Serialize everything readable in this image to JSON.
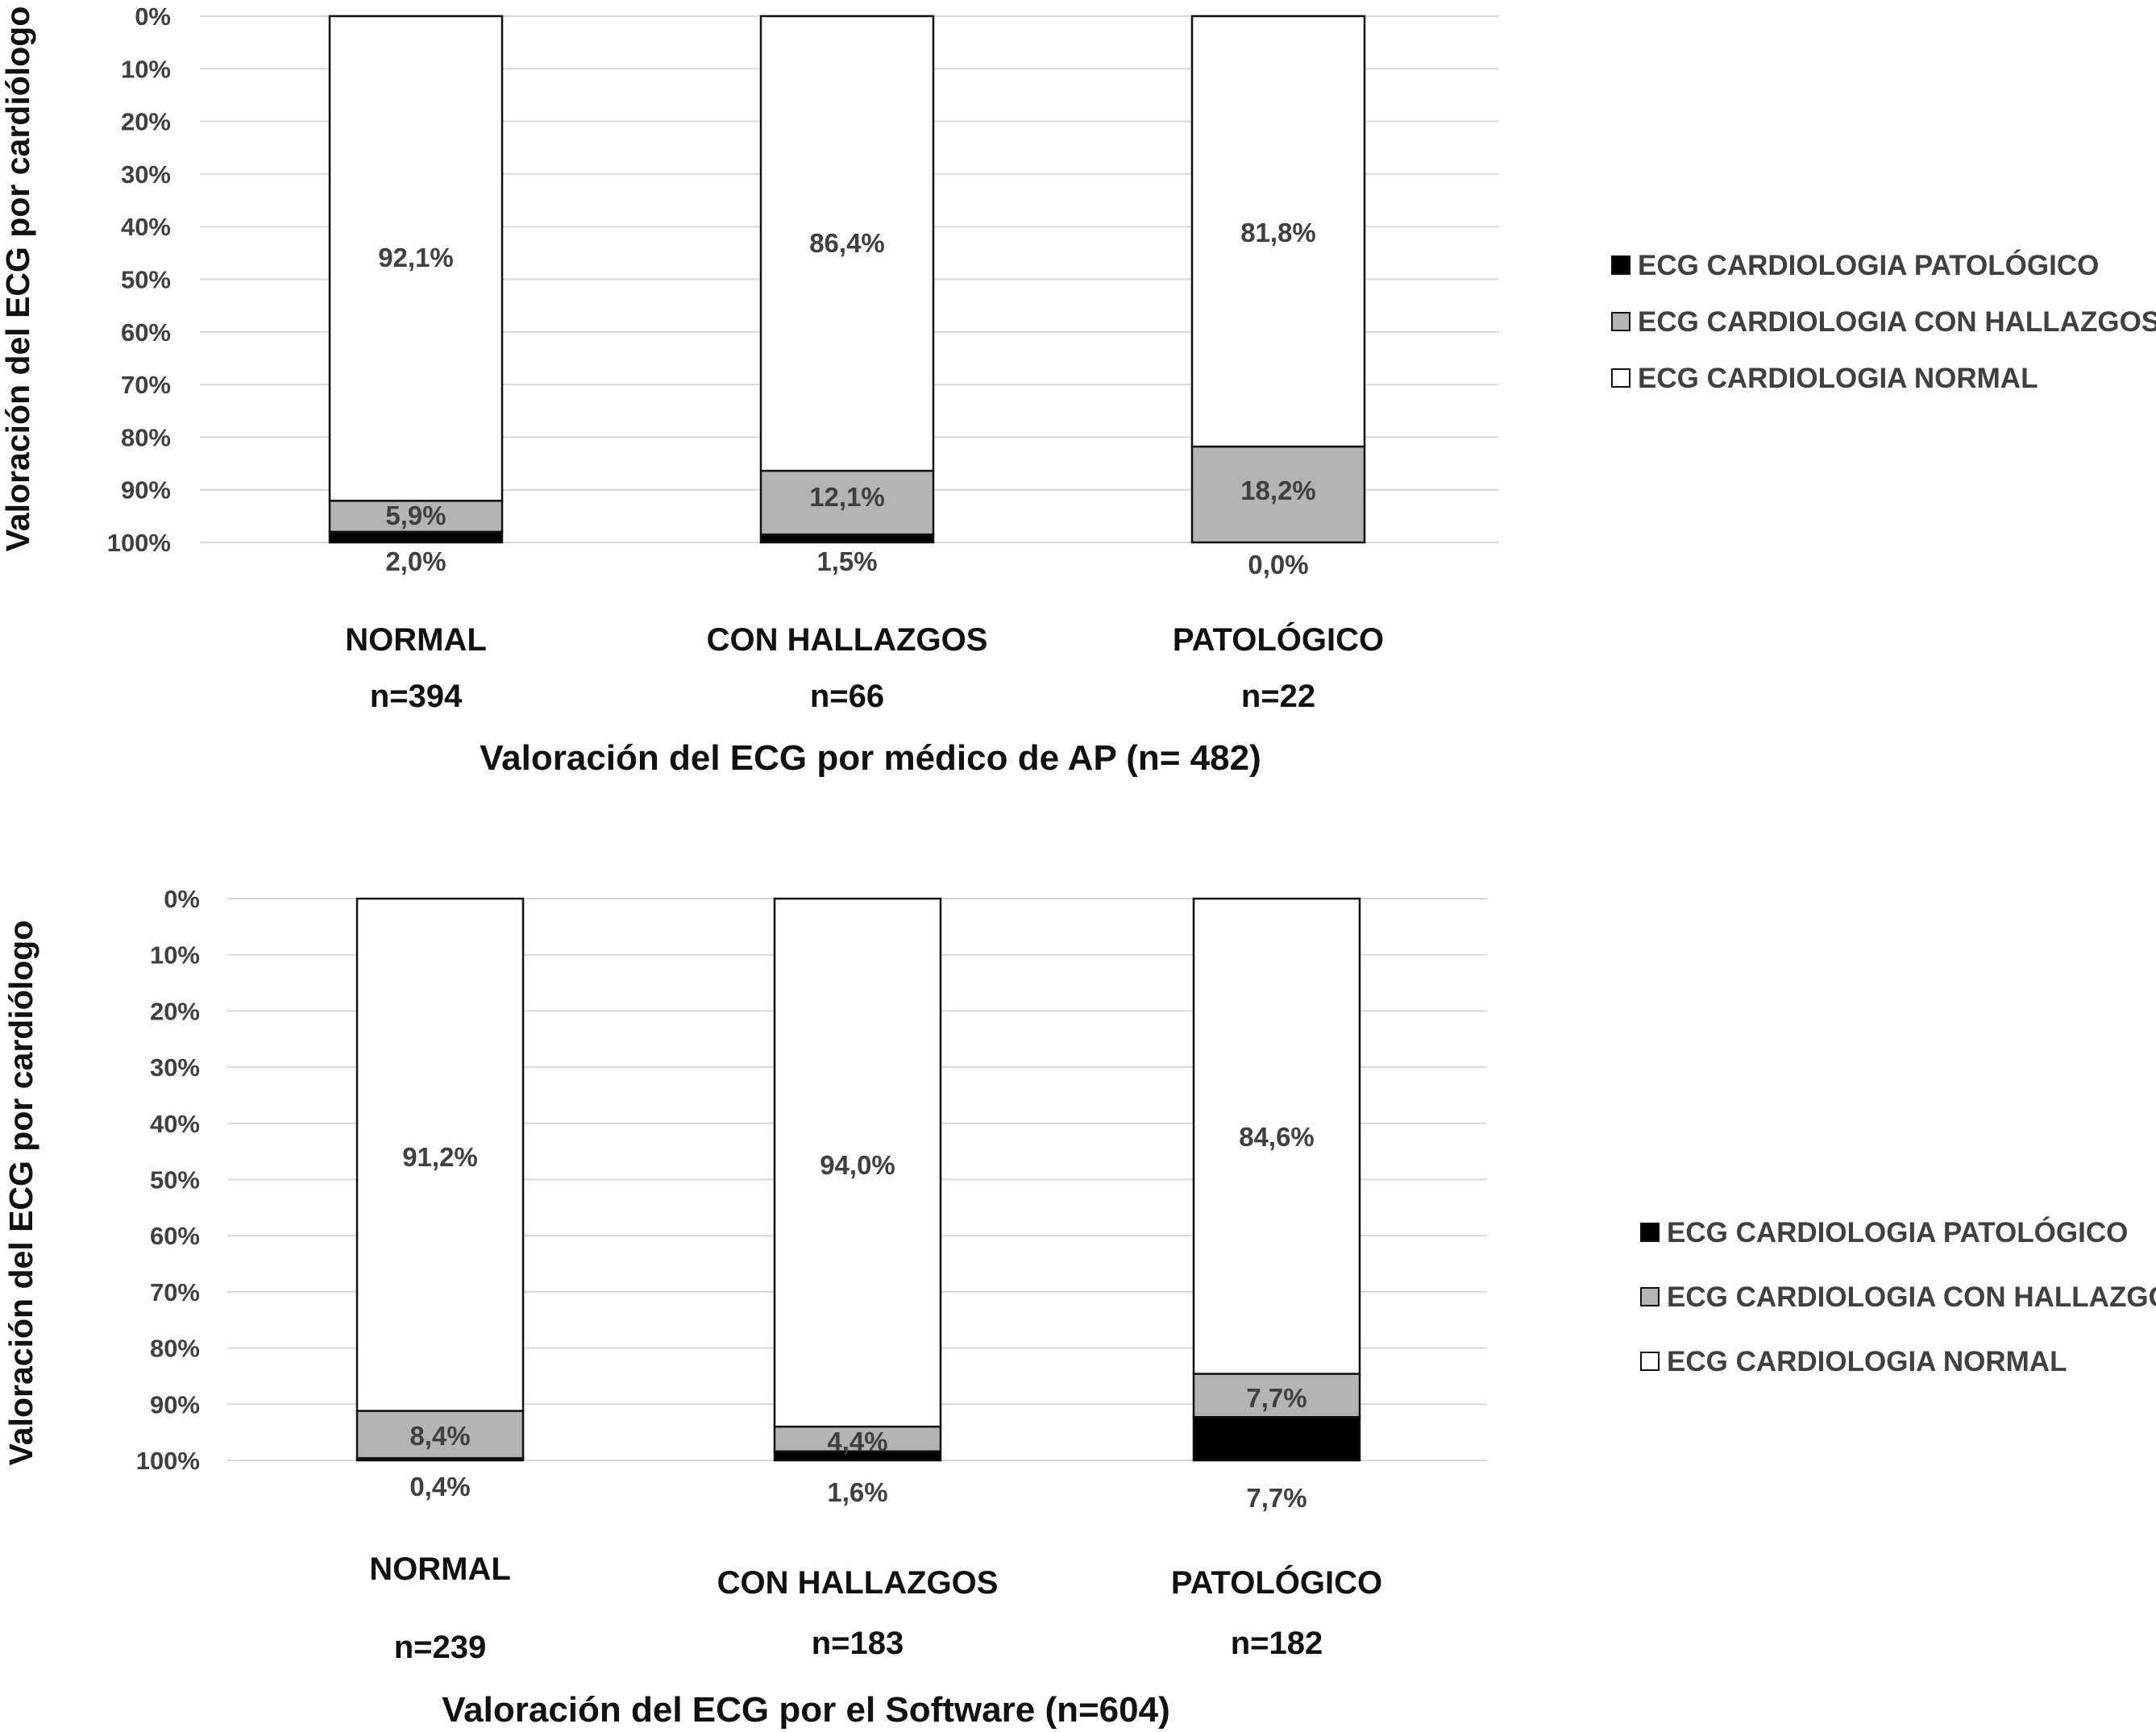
{
  "legend_items": [
    "ECG CARDIOLOGIA PATOLÓGICO",
    "ECG CARDIOLOGIA CON HALLAZGOS",
    "ECG CARDIOLOGIA NORMAL"
  ],
  "series_colors": {
    "patologico": "#000000",
    "hallazgos": "#b4b4b4",
    "normal": "#ffffff"
  },
  "chart_data": [
    {
      "type": "bar",
      "stacked": true,
      "percent_axis_reversed": true,
      "ylabel": "Valoración del ECG por cardiólogo",
      "xlabel": "Valoración del ECG por médico de AP (n= 482)",
      "ylim": [
        0,
        100
      ],
      "yticks": [
        "0%",
        "10%",
        "20%",
        "30%",
        "40%",
        "50%",
        "60%",
        "70%",
        "80%",
        "90%",
        "100%"
      ],
      "categories": [
        "NORMAL",
        "CON HALLAZGOS",
        "PATOLÓGICO"
      ],
      "category_n": [
        "n=394",
        "n=66",
        "n=22"
      ],
      "series": [
        {
          "name": "ECG CARDIOLOGIA PATOLÓGICO",
          "values": [
            2.0,
            1.5,
            0.0
          ],
          "labels": [
            "2,0%",
            "1,5%",
            "0,0%"
          ]
        },
        {
          "name": "ECG CARDIOLOGIA CON HALLAZGOS",
          "values": [
            5.9,
            12.1,
            18.2
          ],
          "labels": [
            "5,9%",
            "12,1%",
            "18,2%"
          ]
        },
        {
          "name": "ECG CARDIOLOGIA NORMAL",
          "values": [
            92.1,
            86.4,
            81.8
          ],
          "labels": [
            "92,1%",
            "86,4%",
            "81,8%"
          ]
        }
      ],
      "legend_position": "right"
    },
    {
      "type": "bar",
      "stacked": true,
      "percent_axis_reversed": true,
      "ylabel": "Valoración del ECG por cardiólogo",
      "xlabel": "Valoración del ECG por el Software (n=604)",
      "ylim": [
        0,
        100
      ],
      "yticks": [
        "0%",
        "10%",
        "20%",
        "30%",
        "40%",
        "50%",
        "60%",
        "70%",
        "80%",
        "90%",
        "100%"
      ],
      "categories": [
        "NORMAL",
        "CON HALLAZGOS",
        "PATOLÓGICO"
      ],
      "category_n": [
        "n=239",
        "n=183",
        "n=182"
      ],
      "series": [
        {
          "name": "ECG CARDIOLOGIA PATOLÓGICO",
          "values": [
            0.4,
            1.6,
            7.7
          ],
          "labels": [
            "0,4%",
            "1,6%",
            "7,7%"
          ]
        },
        {
          "name": "ECG CARDIOLOGIA CON HALLAZGOS",
          "values": [
            8.4,
            4.4,
            7.7
          ],
          "labels": [
            "8,4%",
            "4,4%",
            "7,7%"
          ]
        },
        {
          "name": "ECG CARDIOLOGIA NORMAL",
          "values": [
            91.2,
            94.0,
            84.6
          ],
          "labels": [
            "91,2%",
            "94,0%",
            "84,6%"
          ]
        }
      ],
      "legend_position": "right"
    }
  ]
}
